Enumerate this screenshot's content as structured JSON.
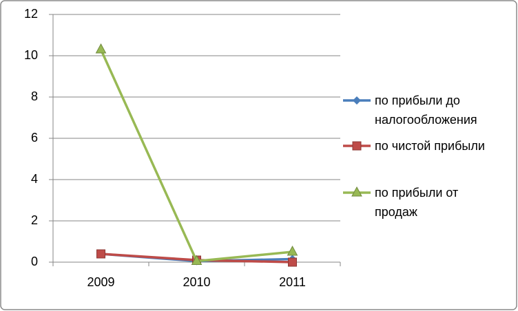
{
  "chart_data": {
    "type": "line",
    "categories": [
      "2009",
      "2010",
      "2011"
    ],
    "series": [
      {
        "name": "по прибыли до налогообложения",
        "color": "#4a7ebb",
        "marker": "diamond",
        "values": [
          0.4,
          0.05,
          0.15
        ]
      },
      {
        "name": "по чистой прибыли",
        "color": "#be4b48",
        "marker": "square",
        "values": [
          0.4,
          0.1,
          0.0
        ]
      },
      {
        "name": "по прибыли от продаж",
        "color": "#98b954",
        "marker": "triangle",
        "values": [
          10.3,
          0.05,
          0.5
        ]
      }
    ],
    "ylim": [
      0,
      12
    ],
    "yticks": [
      0,
      2,
      4,
      6,
      8,
      10,
      12
    ],
    "grid": true,
    "legend": "right"
  }
}
